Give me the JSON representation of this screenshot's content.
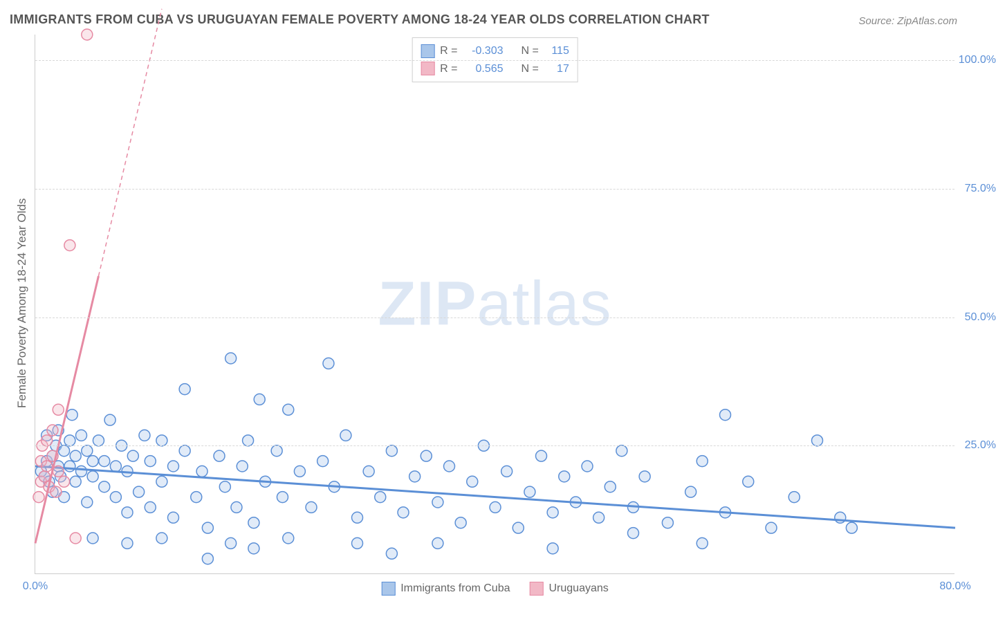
{
  "title": "IMMIGRANTS FROM CUBA VS URUGUAYAN FEMALE POVERTY AMONG 18-24 YEAR OLDS CORRELATION CHART",
  "source_label": "Source: ",
  "source_name": "ZipAtlas.com",
  "y_axis_label": "Female Poverty Among 18-24 Year Olds",
  "watermark_bold": "ZIP",
  "watermark_rest": "atlas",
  "chart": {
    "type": "scatter",
    "xlim": [
      0,
      80
    ],
    "ylim": [
      0,
      105
    ],
    "x_ticks": [
      {
        "v": 0,
        "label": "0.0%"
      },
      {
        "v": 80,
        "label": "80.0%"
      }
    ],
    "y_ticks": [
      {
        "v": 25,
        "label": "25.0%"
      },
      {
        "v": 50,
        "label": "50.0%"
      },
      {
        "v": 75,
        "label": "75.0%"
      },
      {
        "v": 100,
        "label": "100.0%"
      }
    ],
    "grid_color": "#d8d8d8",
    "background_color": "#ffffff",
    "marker_radius": 8,
    "marker_stroke_width": 1.5,
    "fill_opacity": 0.35,
    "series": [
      {
        "name": "Immigrants from Cuba",
        "color_stroke": "#5b8fd6",
        "color_fill": "#a9c6ea",
        "R": "-0.303",
        "N": "115",
        "regression": {
          "x1": 0,
          "y1": 21,
          "x2": 80,
          "y2": 9,
          "width": 3
        },
        "points": [
          [
            0.5,
            20
          ],
          [
            0.8,
            19
          ],
          [
            1,
            22
          ],
          [
            1,
            27
          ],
          [
            1.2,
            18
          ],
          [
            1.5,
            23
          ],
          [
            1.5,
            16
          ],
          [
            1.8,
            25
          ],
          [
            2,
            21
          ],
          [
            2,
            28
          ],
          [
            2.2,
            19
          ],
          [
            2.5,
            24
          ],
          [
            2.5,
            15
          ],
          [
            3,
            21
          ],
          [
            3,
            26
          ],
          [
            3.2,
            31
          ],
          [
            3.5,
            18
          ],
          [
            3.5,
            23
          ],
          [
            4,
            20
          ],
          [
            4,
            27
          ],
          [
            4.5,
            14
          ],
          [
            4.5,
            24
          ],
          [
            5,
            19
          ],
          [
            5,
            22
          ],
          [
            5.5,
            26
          ],
          [
            6,
            17
          ],
          [
            6,
            22
          ],
          [
            6.5,
            30
          ],
          [
            7,
            15
          ],
          [
            7,
            21
          ],
          [
            7.5,
            25
          ],
          [
            8,
            12
          ],
          [
            8,
            20
          ],
          [
            8.5,
            23
          ],
          [
            9,
            16
          ],
          [
            9.5,
            27
          ],
          [
            10,
            13
          ],
          [
            10,
            22
          ],
          [
            11,
            18
          ],
          [
            11,
            26
          ],
          [
            12,
            11
          ],
          [
            12,
            21
          ],
          [
            13,
            24
          ],
          [
            13,
            36
          ],
          [
            14,
            15
          ],
          [
            14.5,
            20
          ],
          [
            15,
            9
          ],
          [
            16,
            23
          ],
          [
            16.5,
            17
          ],
          [
            17,
            42
          ],
          [
            17.5,
            13
          ],
          [
            18,
            21
          ],
          [
            18.5,
            26
          ],
          [
            19,
            10
          ],
          [
            19.5,
            34
          ],
          [
            20,
            18
          ],
          [
            21,
            24
          ],
          [
            21.5,
            15
          ],
          [
            22,
            32
          ],
          [
            23,
            20
          ],
          [
            24,
            13
          ],
          [
            25,
            22
          ],
          [
            25.5,
            41
          ],
          [
            26,
            17
          ],
          [
            27,
            27
          ],
          [
            28,
            11
          ],
          [
            29,
            20
          ],
          [
            30,
            15
          ],
          [
            31,
            24
          ],
          [
            32,
            12
          ],
          [
            33,
            19
          ],
          [
            34,
            23
          ],
          [
            35,
            14
          ],
          [
            36,
            21
          ],
          [
            37,
            10
          ],
          [
            38,
            18
          ],
          [
            39,
            25
          ],
          [
            40,
            13
          ],
          [
            41,
            20
          ],
          [
            42,
            9
          ],
          [
            43,
            16
          ],
          [
            44,
            23
          ],
          [
            45,
            12
          ],
          [
            46,
            19
          ],
          [
            47,
            14
          ],
          [
            48,
            21
          ],
          [
            49,
            11
          ],
          [
            50,
            17
          ],
          [
            51,
            24
          ],
          [
            52,
            13
          ],
          [
            53,
            19
          ],
          [
            55,
            10
          ],
          [
            57,
            16
          ],
          [
            58,
            22
          ],
          [
            60,
            12
          ],
          [
            62,
            18
          ],
          [
            64,
            9
          ],
          [
            66,
            15
          ],
          [
            68,
            26
          ],
          [
            70,
            11
          ],
          [
            60,
            31
          ],
          [
            71,
            9
          ],
          [
            52,
            8
          ],
          [
            35,
            6
          ],
          [
            28,
            6
          ],
          [
            22,
            7
          ],
          [
            17,
            6
          ],
          [
            11,
            7
          ],
          [
            8,
            6
          ],
          [
            5,
            7
          ],
          [
            19,
            5
          ],
          [
            15,
            3
          ],
          [
            31,
            4
          ],
          [
            45,
            5
          ],
          [
            58,
            6
          ]
        ]
      },
      {
        "name": "Uruguayans",
        "color_stroke": "#e68aa3",
        "color_fill": "#f2b8c6",
        "R": "0.565",
        "N": "17",
        "regression": {
          "x1": 0,
          "y1": 6,
          "x2": 5.5,
          "y2": 58,
          "width": 3,
          "dash_extend": {
            "x2": 11,
            "y2": 110
          }
        },
        "points": [
          [
            0.3,
            15
          ],
          [
            0.5,
            18
          ],
          [
            0.5,
            22
          ],
          [
            0.6,
            25
          ],
          [
            0.8,
            19
          ],
          [
            1,
            21
          ],
          [
            1,
            26
          ],
          [
            1.2,
            17
          ],
          [
            1.5,
            23
          ],
          [
            1.5,
            28
          ],
          [
            1.8,
            16
          ],
          [
            2,
            20
          ],
          [
            2,
            32
          ],
          [
            2.5,
            18
          ],
          [
            3,
            64
          ],
          [
            3.5,
            7
          ],
          [
            4.5,
            105
          ]
        ]
      }
    ],
    "legend_bottom": [
      {
        "label": "Immigrants from Cuba",
        "fill": "#a9c6ea",
        "stroke": "#5b8fd6"
      },
      {
        "label": "Uruguayans",
        "fill": "#f2b8c6",
        "stroke": "#e68aa3"
      }
    ]
  },
  "legend_top_labels": {
    "R": "R =",
    "N": "N ="
  }
}
